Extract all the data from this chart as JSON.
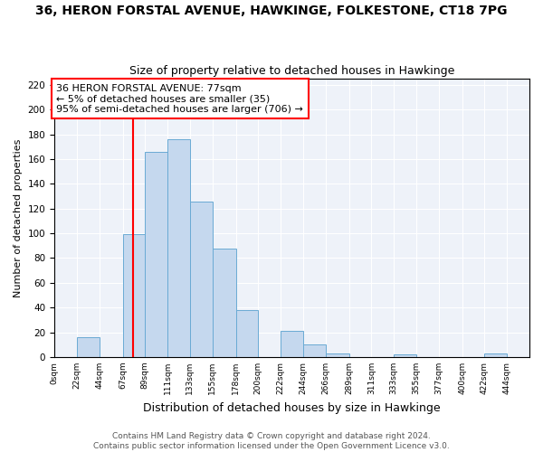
{
  "title": "36, HERON FORSTAL AVENUE, HAWKINGE, FOLKESTONE, CT18 7PG",
  "subtitle": "Size of property relative to detached houses in Hawkinge",
  "xlabel": "Distribution of detached houses by size in Hawkinge",
  "ylabel": "Number of detached properties",
  "bar_left_edges": [
    0,
    22,
    44,
    67,
    89,
    111,
    133,
    155,
    178,
    200,
    222,
    244,
    266,
    289,
    311,
    333,
    355,
    377,
    400,
    422
  ],
  "bar_widths": [
    22,
    22,
    23,
    22,
    22,
    22,
    22,
    23,
    22,
    22,
    22,
    22,
    23,
    22,
    22,
    22,
    22,
    23,
    22,
    22
  ],
  "bar_heights": [
    0,
    16,
    0,
    99,
    166,
    176,
    126,
    88,
    38,
    0,
    21,
    10,
    3,
    0,
    0,
    2,
    0,
    0,
    0,
    3
  ],
  "tick_labels": [
    "0sqm",
    "22sqm",
    "44sqm",
    "67sqm",
    "89sqm",
    "111sqm",
    "133sqm",
    "155sqm",
    "178sqm",
    "200sqm",
    "222sqm",
    "244sqm",
    "266sqm",
    "289sqm",
    "311sqm",
    "333sqm",
    "355sqm",
    "377sqm",
    "400sqm",
    "422sqm",
    "444sqm"
  ],
  "bar_color": "#c5d8ee",
  "bar_edge_color": "#6aaad4",
  "vline_x": 77,
  "vline_color": "red",
  "annotation_text": "36 HERON FORSTAL AVENUE: 77sqm\n← 5% of detached houses are smaller (35)\n95% of semi-detached houses are larger (706) →",
  "annotation_box_color": "white",
  "annotation_box_edge": "red",
  "ylim": [
    0,
    225
  ],
  "yticks": [
    0,
    20,
    40,
    60,
    80,
    100,
    120,
    140,
    160,
    180,
    200,
    220
  ],
  "background_color": "#eef2f9",
  "footer_text": "Contains HM Land Registry data © Crown copyright and database right 2024.\nContains public sector information licensed under the Open Government Licence v3.0.",
  "title_fontsize": 10,
  "subtitle_fontsize": 9,
  "xlabel_fontsize": 9,
  "ylabel_fontsize": 8,
  "footer_fontsize": 6.5,
  "annot_fontsize": 8
}
